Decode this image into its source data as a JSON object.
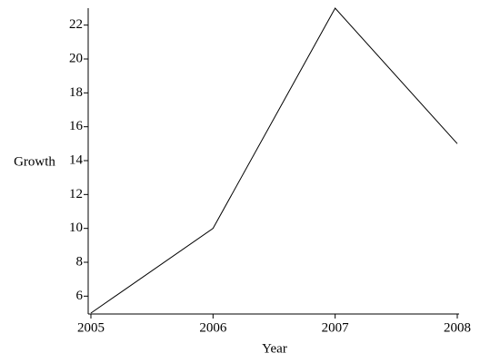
{
  "chart_data": {
    "type": "line",
    "x_label": "Year",
    "y_label": "Growth",
    "x": [
      2005,
      2006,
      2007,
      2008
    ],
    "values": [
      5,
      10,
      23,
      15
    ],
    "color": "#000000",
    "xlim": [
      2005,
      2008
    ],
    "xticks": [
      2005,
      2006,
      2007,
      2008
    ],
    "ylim": [
      5,
      23
    ],
    "yticks": [
      6,
      8,
      10,
      12,
      14,
      16,
      18,
      20,
      22
    ],
    "grid": false
  }
}
